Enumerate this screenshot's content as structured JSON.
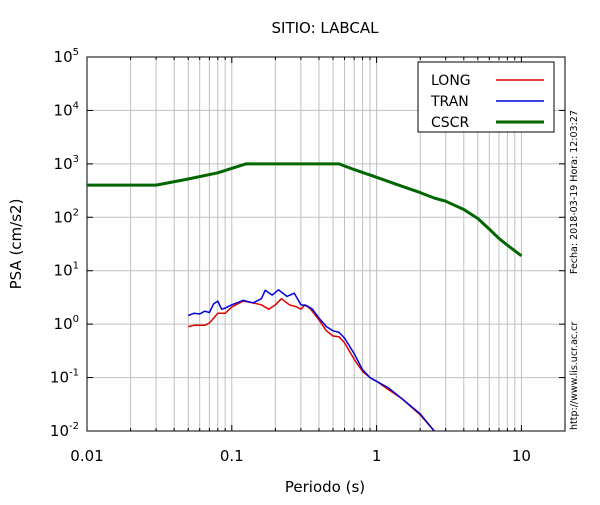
{
  "chart_data": {
    "type": "line",
    "title": "SITIO: LABCAL",
    "xlabel": "Periodo (s)",
    "ylabel": "PSA (cm/s2)",
    "xscale": "log",
    "yscale": "log",
    "xlim": [
      0.01,
      20
    ],
    "ylim": [
      0.01,
      100000
    ],
    "x_ticks": [
      {
        "value": 0.01,
        "label": "0.01"
      },
      {
        "value": 0.1,
        "label": "0.1"
      },
      {
        "value": 1,
        "label": "1"
      },
      {
        "value": 10,
        "label": "10"
      }
    ],
    "y_ticks": [
      {
        "value": 0.01,
        "base": "10",
        "exp": "-2"
      },
      {
        "value": 0.1,
        "base": "10",
        "exp": "-1"
      },
      {
        "value": 1,
        "base": "10",
        "exp": "0"
      },
      {
        "value": 10,
        "base": "10",
        "exp": "1"
      },
      {
        "value": 100,
        "base": "10",
        "exp": "2"
      },
      {
        "value": 1000,
        "base": "10",
        "exp": "3"
      },
      {
        "value": 10000,
        "base": "10",
        "exp": "4"
      },
      {
        "value": 100000,
        "base": "10",
        "exp": "5"
      }
    ],
    "grid": true,
    "legend_position": "top-right",
    "series": [
      {
        "name": "LONG",
        "color": "#e00000",
        "points": [
          [
            0.05,
            0.9
          ],
          [
            0.055,
            0.95
          ],
          [
            0.065,
            0.95
          ],
          [
            0.07,
            1.05
          ],
          [
            0.075,
            1.3
          ],
          [
            0.08,
            1.6
          ],
          [
            0.09,
            1.6
          ],
          [
            0.1,
            2.1
          ],
          [
            0.12,
            2.7
          ],
          [
            0.14,
            2.5
          ],
          [
            0.16,
            2.3
          ],
          [
            0.18,
            1.9
          ],
          [
            0.2,
            2.3
          ],
          [
            0.22,
            3.0
          ],
          [
            0.25,
            2.3
          ],
          [
            0.28,
            2.1
          ],
          [
            0.3,
            1.9
          ],
          [
            0.32,
            2.3
          ],
          [
            0.35,
            1.9
          ],
          [
            0.4,
            1.2
          ],
          [
            0.45,
            0.75
          ],
          [
            0.5,
            0.6
          ],
          [
            0.55,
            0.58
          ],
          [
            0.6,
            0.45
          ],
          [
            0.7,
            0.22
          ],
          [
            0.8,
            0.13
          ],
          [
            0.9,
            0.1
          ],
          [
            1.0,
            0.085
          ],
          [
            1.2,
            0.06
          ],
          [
            1.5,
            0.04
          ],
          [
            2.0,
            0.02
          ],
          [
            2.5,
            0.01
          ]
        ]
      },
      {
        "name": "TRAN",
        "color": "#0000dd",
        "points": [
          [
            0.05,
            1.45
          ],
          [
            0.055,
            1.6
          ],
          [
            0.06,
            1.55
          ],
          [
            0.065,
            1.75
          ],
          [
            0.07,
            1.65
          ],
          [
            0.075,
            2.4
          ],
          [
            0.08,
            2.7
          ],
          [
            0.085,
            1.9
          ],
          [
            0.09,
            2.0
          ],
          [
            0.1,
            2.3
          ],
          [
            0.12,
            2.8
          ],
          [
            0.14,
            2.5
          ],
          [
            0.16,
            3.0
          ],
          [
            0.17,
            4.3
          ],
          [
            0.19,
            3.5
          ],
          [
            0.21,
            4.4
          ],
          [
            0.24,
            3.3
          ],
          [
            0.27,
            3.8
          ],
          [
            0.3,
            2.3
          ],
          [
            0.33,
            2.2
          ],
          [
            0.36,
            1.9
          ],
          [
            0.4,
            1.3
          ],
          [
            0.45,
            0.9
          ],
          [
            0.5,
            0.75
          ],
          [
            0.55,
            0.7
          ],
          [
            0.6,
            0.55
          ],
          [
            0.7,
            0.28
          ],
          [
            0.8,
            0.14
          ],
          [
            0.9,
            0.1
          ],
          [
            1.0,
            0.085
          ],
          [
            1.2,
            0.065
          ],
          [
            1.5,
            0.04
          ],
          [
            2.0,
            0.021
          ],
          [
            2.5,
            0.01
          ]
        ]
      },
      {
        "name": "CSCR",
        "color": "#006600",
        "points": [
          [
            0.01,
            400
          ],
          [
            0.03,
            400
          ],
          [
            0.05,
            520
          ],
          [
            0.08,
            680
          ],
          [
            0.125,
            1000
          ],
          [
            0.55,
            1000
          ],
          [
            0.7,
            780
          ],
          [
            1.0,
            560
          ],
          [
            1.5,
            380
          ],
          [
            2.0,
            290
          ],
          [
            2.5,
            230
          ],
          [
            3.0,
            200
          ],
          [
            3.5,
            165
          ],
          [
            4.0,
            140
          ],
          [
            5.0,
            95
          ],
          [
            6.0,
            60
          ],
          [
            7.0,
            40
          ],
          [
            8.0,
            30
          ],
          [
            10.0,
            19
          ]
        ]
      }
    ]
  },
  "side_labels": {
    "date": "Fecha: 2018-03-19 Hora: 12:03:27",
    "url": "http://www.lis.ucr.ac.cr"
  }
}
